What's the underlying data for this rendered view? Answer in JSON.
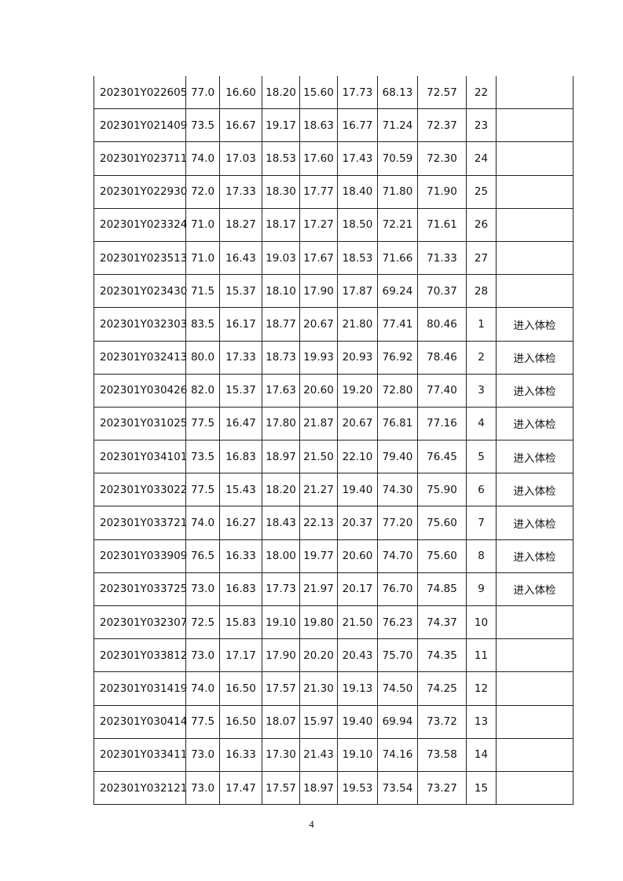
{
  "rows": [
    [
      "202301Y022605",
      "77.0",
      "16.60",
      "18.20",
      "15.60",
      "17.73",
      "68.13",
      "72.57",
      "22",
      ""
    ],
    [
      "202301Y021409",
      "73.5",
      "16.67",
      "19.17",
      "18.63",
      "16.77",
      "71.24",
      "72.37",
      "23",
      ""
    ],
    [
      "202301Y023711",
      "74.0",
      "17.03",
      "18.53",
      "17.60",
      "17.43",
      "70.59",
      "72.30",
      "24",
      ""
    ],
    [
      "202301Y022930",
      "72.0",
      "17.33",
      "18.30",
      "17.77",
      "18.40",
      "71.80",
      "71.90",
      "25",
      ""
    ],
    [
      "202301Y023324",
      "71.0",
      "18.27",
      "18.17",
      "17.27",
      "18.50",
      "72.21",
      "71.61",
      "26",
      ""
    ],
    [
      "202301Y023513",
      "71.0",
      "16.43",
      "19.03",
      "17.67",
      "18.53",
      "71.66",
      "71.33",
      "27",
      ""
    ],
    [
      "202301Y023430",
      "71.5",
      "15.37",
      "18.10",
      "17.90",
      "17.87",
      "69.24",
      "70.37",
      "28",
      ""
    ],
    [
      "202301Y032303",
      "83.5",
      "16.17",
      "18.77",
      "20.67",
      "21.80",
      "77.41",
      "80.46",
      "1",
      "进入体检"
    ],
    [
      "202301Y032413",
      "80.0",
      "17.33",
      "18.73",
      "19.93",
      "20.93",
      "76.92",
      "78.46",
      "2",
      "进入体检"
    ],
    [
      "202301Y030426",
      "82.0",
      "15.37",
      "17.63",
      "20.60",
      "19.20",
      "72.80",
      "77.40",
      "3",
      "进入体检"
    ],
    [
      "202301Y031025",
      "77.5",
      "16.47",
      "17.80",
      "21.87",
      "20.67",
      "76.81",
      "77.16",
      "4",
      "进入体检"
    ],
    [
      "202301Y034101",
      "73.5",
      "16.83",
      "18.97",
      "21.50",
      "22.10",
      "79.40",
      "76.45",
      "5",
      "进入体检"
    ],
    [
      "202301Y033022",
      "77.5",
      "15.43",
      "18.20",
      "21.27",
      "19.40",
      "74.30",
      "75.90",
      "6",
      "进入体检"
    ],
    [
      "202301Y033721",
      "74.0",
      "16.27",
      "18.43",
      "22.13",
      "20.37",
      "77.20",
      "75.60",
      "7",
      "进入体检"
    ],
    [
      "202301Y033909",
      "76.5",
      "16.33",
      "18.00",
      "19.77",
      "20.60",
      "74.70",
      "75.60",
      "8",
      "进入体检"
    ],
    [
      "202301Y033725",
      "73.0",
      "16.83",
      "17.73",
      "21.97",
      "20.17",
      "76.70",
      "74.85",
      "9",
      "进入体检"
    ],
    [
      "202301Y032307",
      "72.5",
      "15.83",
      "19.10",
      "19.80",
      "21.50",
      "76.23",
      "74.37",
      "10",
      ""
    ],
    [
      "202301Y033812",
      "73.0",
      "17.17",
      "17.90",
      "20.20",
      "20.43",
      "75.70",
      "74.35",
      "11",
      ""
    ],
    [
      "202301Y031419",
      "74.0",
      "16.50",
      "17.57",
      "21.30",
      "19.13",
      "74.50",
      "74.25",
      "12",
      ""
    ],
    [
      "202301Y030414",
      "77.5",
      "16.50",
      "18.07",
      "15.97",
      "19.40",
      "69.94",
      "73.72",
      "13",
      ""
    ],
    [
      "202301Y033411",
      "73.0",
      "16.33",
      "17.30",
      "21.43",
      "19.10",
      "74.16",
      "73.58",
      "14",
      ""
    ],
    [
      "202301Y032121",
      "73.0",
      "17.47",
      "17.57",
      "18.97",
      "19.53",
      "73.54",
      "73.27",
      "15",
      ""
    ]
  ],
  "page_number": "4"
}
